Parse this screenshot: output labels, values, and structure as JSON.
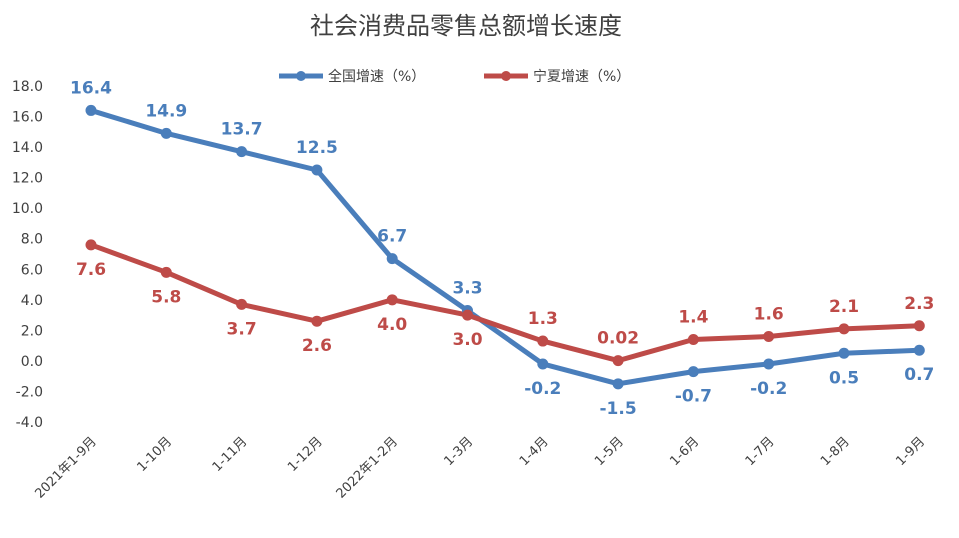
{
  "chart_data": {
    "type": "line",
    "title": "社会消费品零售总额增长速度",
    "categories": [
      "2021年1-9月",
      "1-10月",
      "1-11月",
      "1-12月",
      "2022年1-2月",
      "1-3月",
      "1-4月",
      "1-5月",
      "1-6月",
      "1-7月",
      "1-8月",
      "1-9月"
    ],
    "series": [
      {
        "name": "全国增速（%）",
        "color": "#4a7ebb",
        "values": [
          16.4,
          14.9,
          13.7,
          12.5,
          6.7,
          3.3,
          -0.2,
          -1.5,
          -0.7,
          -0.2,
          0.5,
          0.7
        ],
        "labels": [
          "16.4",
          "14.9",
          "13.7",
          "12.5",
          "6.7",
          "3.3",
          "-0.2",
          "-1.5",
          "-0.7",
          "-0.2",
          "0.5",
          "0.7"
        ],
        "label_pos": [
          "above",
          "above",
          "above",
          "above",
          "above",
          "above",
          "below",
          "below",
          "below",
          "below",
          "below",
          "below"
        ]
      },
      {
        "name": "宁夏增速（%）",
        "color": "#be4b48",
        "values": [
          7.6,
          5.8,
          3.7,
          2.6,
          4.0,
          3.0,
          1.3,
          0.02,
          1.4,
          1.6,
          2.1,
          2.3
        ],
        "labels": [
          "7.6",
          "5.8",
          "3.7",
          "2.6",
          "4.0",
          "3.0",
          "1.3",
          "0.02",
          "1.4",
          "1.6",
          "2.1",
          "2.3"
        ],
        "label_pos": [
          "below",
          "below",
          "below",
          "below",
          "below",
          "below",
          "above",
          "above",
          "above",
          "above",
          "above",
          "above"
        ]
      }
    ],
    "ylim": [
      -4.0,
      18.0
    ],
    "yticks": [
      "18.0",
      "16.0",
      "14.0",
      "12.0",
      "10.0",
      "8.0",
      "6.0",
      "4.0",
      "2.0",
      "0.0",
      "-2.0",
      "-4.0"
    ],
    "ytick_values": [
      18,
      16,
      14,
      12,
      10,
      8,
      6,
      4,
      2,
      0,
      -2,
      -4
    ],
    "grid": false,
    "legend_position": "top-center"
  }
}
